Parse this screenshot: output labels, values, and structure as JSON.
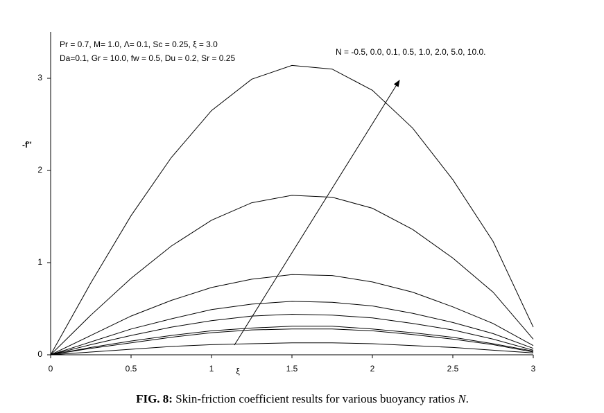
{
  "chart_data": {
    "type": "line",
    "annotations": [
      "Pr = 0.7,  M= 1.0, Λ= 0.1, Sc = 0.25, ξ = 3.0",
      "Da=0.1, Gr = 10.0, fw = 0.5, Du = 0.2, Sr = 0.25",
      "N = -0.5, 0.0, 0.1, 0.5, 1.0, 2.0, 5.0, 10.0."
    ],
    "y_label": "-f''",
    "x_label": "ξ",
    "caption": {
      "label": "FIG. 8:",
      "text": "Skin-friction coefficient results for various buoyancy ratios",
      "symbol": "N",
      "end": "."
    },
    "x": [
      0,
      0.25,
      0.5,
      0.75,
      1,
      1.25,
      1.5,
      1.75,
      2,
      2.25,
      2.5,
      2.75,
      3
    ],
    "series": [
      {
        "color": "#000000",
        "values": [
          0,
          0.78,
          1.51,
          2.14,
          2.65,
          2.99,
          3.14,
          3.1,
          2.87,
          2.46,
          1.9,
          1.23,
          0.3
        ]
      },
      {
        "color": "#000000",
        "values": [
          0,
          0.43,
          0.83,
          1.18,
          1.46,
          1.65,
          1.73,
          1.71,
          1.59,
          1.36,
          1.05,
          0.68,
          0.17
        ]
      },
      {
        "color": "#000000",
        "values": [
          0,
          0.21,
          0.42,
          0.59,
          0.73,
          0.82,
          0.87,
          0.86,
          0.79,
          0.68,
          0.52,
          0.34,
          0.1
        ]
      },
      {
        "color": "#000000",
        "values": [
          0,
          0.14,
          0.28,
          0.39,
          0.49,
          0.55,
          0.58,
          0.57,
          0.53,
          0.45,
          0.35,
          0.23,
          0.07
        ]
      },
      {
        "color": "#000000",
        "values": [
          0,
          0.11,
          0.21,
          0.3,
          0.37,
          0.42,
          0.44,
          0.43,
          0.4,
          0.34,
          0.27,
          0.17,
          0.05
        ]
      },
      {
        "color": "#000000",
        "values": [
          0,
          0.08,
          0.15,
          0.21,
          0.26,
          0.29,
          0.31,
          0.31,
          0.28,
          0.24,
          0.19,
          0.12,
          0.04
        ]
      },
      {
        "color": "#000000",
        "values": [
          0,
          0.07,
          0.13,
          0.19,
          0.24,
          0.27,
          0.28,
          0.28,
          0.26,
          0.22,
          0.17,
          0.11,
          0.03
        ]
      },
      {
        "color": "#000000",
        "values": [
          0,
          0.03,
          0.06,
          0.09,
          0.11,
          0.12,
          0.13,
          0.13,
          0.12,
          0.1,
          0.08,
          0.05,
          0.02
        ]
      }
    ],
    "xlim": [
      0,
      3
    ],
    "ylim": [
      0,
      3.5
    ],
    "xticks": [
      0,
      0.5,
      1,
      1.5,
      2,
      2.5,
      3
    ],
    "yticks": [
      0,
      1,
      2,
      3
    ],
    "grid": false
  }
}
